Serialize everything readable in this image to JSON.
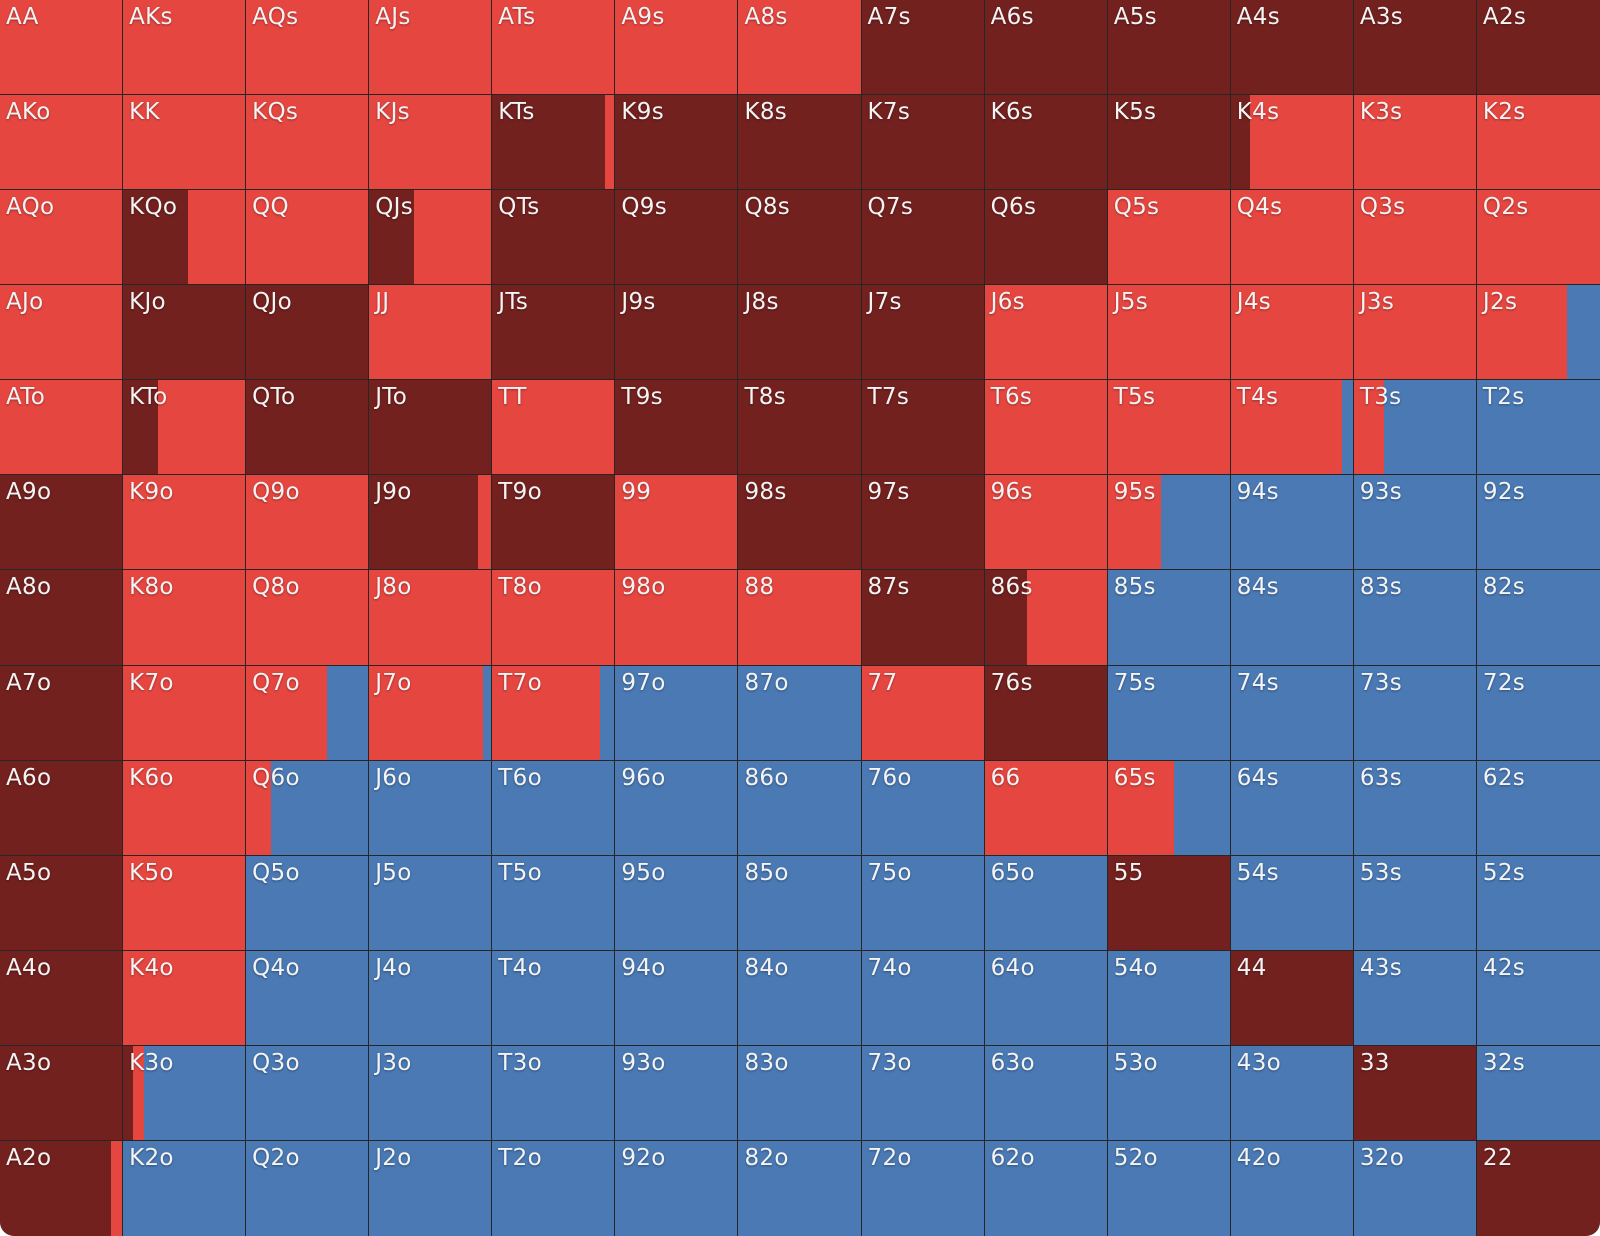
{
  "colors": {
    "raise": "#e64640",
    "call": "#73211f",
    "fold": "#4a79b4"
  },
  "grid": {
    "rows": [
      [
        "AA",
        "AKs",
        "AQs",
        "AJs",
        "ATs",
        "A9s",
        "A8s",
        "A7s",
        "A6s",
        "A5s",
        "A4s",
        "A3s",
        "A2s"
      ],
      [
        "AKo",
        "KK",
        "KQs",
        "KJs",
        "KTs",
        "K9s",
        "K8s",
        "K7s",
        "K6s",
        "K5s",
        "K4s",
        "K3s",
        "K2s"
      ],
      [
        "AQo",
        "KQo",
        "QQ",
        "QJs",
        "QTs",
        "Q9s",
        "Q8s",
        "Q7s",
        "Q6s",
        "Q5s",
        "Q4s",
        "Q3s",
        "Q2s"
      ],
      [
        "AJo",
        "KJo",
        "QJo",
        "JJ",
        "JTs",
        "J9s",
        "J8s",
        "J7s",
        "J6s",
        "J5s",
        "J4s",
        "J3s",
        "J2s"
      ],
      [
        "ATo",
        "KTo",
        "QTo",
        "JTo",
        "TT",
        "T9s",
        "T8s",
        "T7s",
        "T6s",
        "T5s",
        "T4s",
        "T3s",
        "T2s"
      ],
      [
        "A9o",
        "K9o",
        "Q9o",
        "J9o",
        "T9o",
        "99",
        "98s",
        "97s",
        "96s",
        "95s",
        "94s",
        "93s",
        "92s"
      ],
      [
        "A8o",
        "K8o",
        "Q8o",
        "J8o",
        "T8o",
        "98o",
        "88",
        "87s",
        "86s",
        "85s",
        "84s",
        "83s",
        "82s"
      ],
      [
        "A7o",
        "K7o",
        "Q7o",
        "J7o",
        "T7o",
        "97o",
        "87o",
        "77",
        "76s",
        "75s",
        "74s",
        "73s",
        "72s"
      ],
      [
        "A6o",
        "K6o",
        "Q6o",
        "J6o",
        "T6o",
        "96o",
        "86o",
        "76o",
        "66",
        "65s",
        "64s",
        "63s",
        "62s"
      ],
      [
        "A5o",
        "K5o",
        "Q5o",
        "J5o",
        "T5o",
        "95o",
        "85o",
        "75o",
        "65o",
        "55",
        "54s",
        "53s",
        "52s"
      ],
      [
        "A4o",
        "K4o",
        "Q4o",
        "J4o",
        "T4o",
        "94o",
        "84o",
        "74o",
        "64o",
        "54o",
        "44",
        "43s",
        "42s"
      ],
      [
        "A3o",
        "K3o",
        "Q3o",
        "J3o",
        "T3o",
        "93o",
        "83o",
        "73o",
        "63o",
        "53o",
        "43o",
        "33",
        "32s"
      ],
      [
        "A2o",
        "K2o",
        "Q2o",
        "J2o",
        "T2o",
        "92o",
        "82o",
        "72o",
        "62o",
        "52o",
        "42o",
        "32o",
        "22"
      ]
    ],
    "frequencies": [
      [
        [
          0,
          1,
          0
        ],
        [
          0,
          1,
          0
        ],
        [
          0,
          1,
          0
        ],
        [
          0,
          1,
          0
        ],
        [
          0,
          1,
          0
        ],
        [
          0,
          1,
          0
        ],
        [
          0,
          1,
          0
        ],
        [
          1,
          0,
          0
        ],
        [
          1,
          0,
          0
        ],
        [
          1,
          0,
          0
        ],
        [
          1,
          0,
          0
        ],
        [
          1,
          0,
          0
        ],
        [
          1,
          0,
          0
        ]
      ],
      [
        [
          0,
          1,
          0
        ],
        [
          0,
          1,
          0
        ],
        [
          0,
          1,
          0
        ],
        [
          0,
          1,
          0
        ],
        [
          0.92,
          0.08,
          0
        ],
        [
          1,
          0,
          0
        ],
        [
          1,
          0,
          0
        ],
        [
          1,
          0,
          0
        ],
        [
          1,
          0,
          0
        ],
        [
          1,
          0,
          0
        ],
        [
          0.16,
          0.84,
          0
        ],
        [
          0,
          1,
          0
        ],
        [
          0,
          1,
          0
        ]
      ],
      [
        [
          0,
          1,
          0
        ],
        [
          0.53,
          0.47,
          0
        ],
        [
          0,
          1,
          0
        ],
        [
          0.37,
          0.63,
          0
        ],
        [
          1,
          0,
          0
        ],
        [
          1,
          0,
          0
        ],
        [
          1,
          0,
          0
        ],
        [
          1,
          0,
          0
        ],
        [
          1,
          0,
          0
        ],
        [
          0,
          1,
          0
        ],
        [
          0,
          1,
          0
        ],
        [
          0,
          1,
          0
        ],
        [
          0,
          1,
          0
        ]
      ],
      [
        [
          0,
          1,
          0
        ],
        [
          1,
          0,
          0
        ],
        [
          1,
          0,
          0
        ],
        [
          0,
          1,
          0
        ],
        [
          1,
          0,
          0
        ],
        [
          1,
          0,
          0
        ],
        [
          1,
          0,
          0
        ],
        [
          1,
          0,
          0
        ],
        [
          0,
          1,
          0
        ],
        [
          0,
          1,
          0
        ],
        [
          0,
          1,
          0
        ],
        [
          0,
          1,
          0
        ],
        [
          0,
          0.73,
          0.27
        ]
      ],
      [
        [
          0,
          1,
          0
        ],
        [
          0.29,
          0.71,
          0
        ],
        [
          1,
          0,
          0
        ],
        [
          1,
          0,
          0
        ],
        [
          0,
          1,
          0
        ],
        [
          1,
          0,
          0
        ],
        [
          1,
          0,
          0
        ],
        [
          1,
          0,
          0
        ],
        [
          0,
          1,
          0
        ],
        [
          0,
          1,
          0
        ],
        [
          0,
          0.91,
          0.09
        ],
        [
          0,
          0.25,
          0.75
        ],
        [
          0,
          0,
          1
        ]
      ],
      [
        [
          1,
          0,
          0
        ],
        [
          0,
          1,
          0
        ],
        [
          0,
          1,
          0
        ],
        [
          0.89,
          0.11,
          0
        ],
        [
          1,
          0,
          0
        ],
        [
          0,
          1,
          0
        ],
        [
          1,
          0,
          0
        ],
        [
          1,
          0,
          0
        ],
        [
          0,
          1,
          0
        ],
        [
          0,
          0.44,
          0.56
        ],
        [
          0,
          0,
          1
        ],
        [
          0,
          0,
          1
        ],
        [
          0,
          0,
          1
        ]
      ],
      [
        [
          1,
          0,
          0
        ],
        [
          0,
          1,
          0
        ],
        [
          0,
          1,
          0
        ],
        [
          0,
          1,
          0
        ],
        [
          0,
          1,
          0
        ],
        [
          0,
          1,
          0
        ],
        [
          0,
          1,
          0
        ],
        [
          1,
          0,
          0
        ],
        [
          0.35,
          0.65,
          0
        ],
        [
          0,
          0,
          1
        ],
        [
          0,
          0,
          1
        ],
        [
          0,
          0,
          1
        ],
        [
          0,
          0,
          1
        ]
      ],
      [
        [
          1,
          0,
          0
        ],
        [
          0,
          1,
          0
        ],
        [
          0,
          0.66,
          0.34
        ],
        [
          0,
          0.93,
          0.07
        ],
        [
          0,
          0.88,
          0.12
        ],
        [
          0,
          0,
          1
        ],
        [
          0,
          0,
          1
        ],
        [
          0,
          1,
          0
        ],
        [
          1,
          0,
          0
        ],
        [
          0,
          0,
          1
        ],
        [
          0,
          0,
          1
        ],
        [
          0,
          0,
          1
        ],
        [
          0,
          0,
          1
        ]
      ],
      [
        [
          1,
          0,
          0
        ],
        [
          0,
          1,
          0
        ],
        [
          0,
          0.2,
          0.8
        ],
        [
          0,
          0,
          1
        ],
        [
          0,
          0,
          1
        ],
        [
          0,
          0,
          1
        ],
        [
          0,
          0,
          1
        ],
        [
          0,
          0,
          1
        ],
        [
          0,
          1,
          0
        ],
        [
          0,
          0.54,
          0.46
        ],
        [
          0,
          0,
          1
        ],
        [
          0,
          0,
          1
        ],
        [
          0,
          0,
          1
        ]
      ],
      [
        [
          1,
          0,
          0
        ],
        [
          0,
          1,
          0
        ],
        [
          0,
          0,
          1
        ],
        [
          0,
          0,
          1
        ],
        [
          0,
          0,
          1
        ],
        [
          0,
          0,
          1
        ],
        [
          0,
          0,
          1
        ],
        [
          0,
          0,
          1
        ],
        [
          0,
          0,
          1
        ],
        [
          1,
          0,
          0
        ],
        [
          0,
          0,
          1
        ],
        [
          0,
          0,
          1
        ],
        [
          0,
          0,
          1
        ]
      ],
      [
        [
          1,
          0,
          0
        ],
        [
          0,
          1,
          0
        ],
        [
          0,
          0,
          1
        ],
        [
          0,
          0,
          1
        ],
        [
          0,
          0,
          1
        ],
        [
          0,
          0,
          1
        ],
        [
          0,
          0,
          1
        ],
        [
          0,
          0,
          1
        ],
        [
          0,
          0,
          1
        ],
        [
          0,
          0,
          1
        ],
        [
          1,
          0,
          0
        ],
        [
          0,
          0,
          1
        ],
        [
          0,
          0,
          1
        ]
      ],
      [
        [
          1,
          0,
          0
        ],
        [
          0.08,
          0.09,
          0.83
        ],
        [
          0,
          0,
          1
        ],
        [
          0,
          0,
          1
        ],
        [
          0,
          0,
          1
        ],
        [
          0,
          0,
          1
        ],
        [
          0,
          0,
          1
        ],
        [
          0,
          0,
          1
        ],
        [
          0,
          0,
          1
        ],
        [
          0,
          0,
          1
        ],
        [
          0,
          0,
          1
        ],
        [
          1,
          0,
          0
        ],
        [
          0,
          0,
          1
        ]
      ],
      [
        [
          0.91,
          0.09,
          0
        ],
        [
          0,
          0,
          1
        ],
        [
          0,
          0,
          1
        ],
        [
          0,
          0,
          1
        ],
        [
          0,
          0,
          1
        ],
        [
          0,
          0,
          1
        ],
        [
          0,
          0,
          1
        ],
        [
          0,
          0,
          1
        ],
        [
          0,
          0,
          1
        ],
        [
          0,
          0,
          1
        ],
        [
          0,
          0,
          1
        ],
        [
          0,
          0,
          1
        ],
        [
          1,
          0,
          0
        ]
      ]
    ]
  }
}
